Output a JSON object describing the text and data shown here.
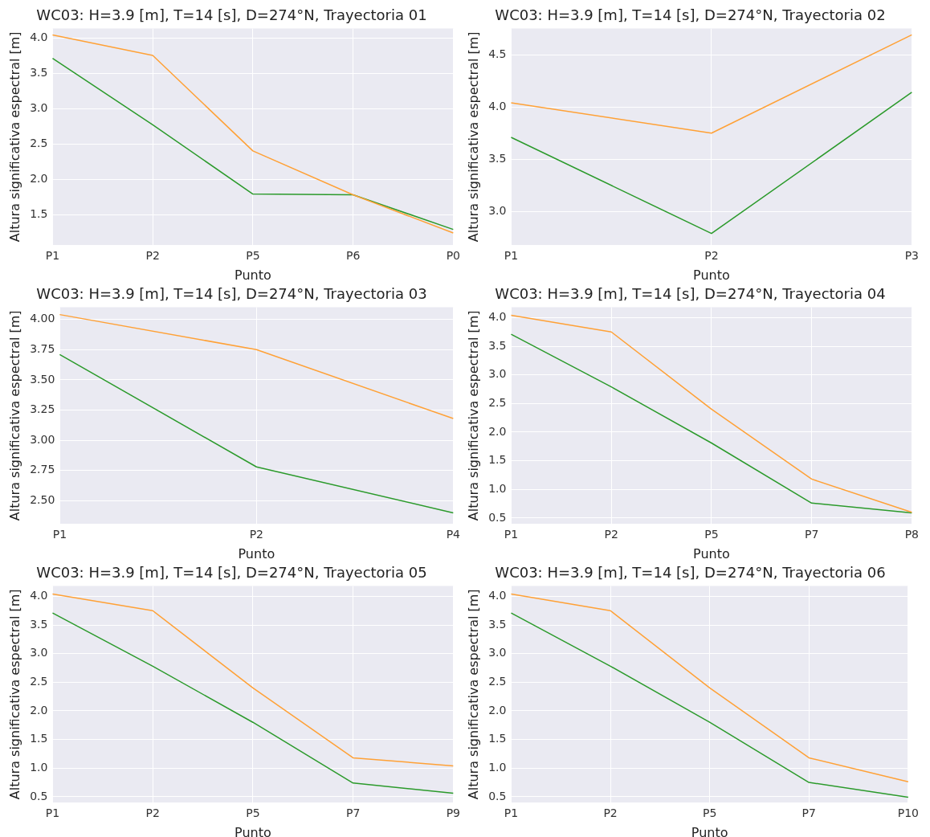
{
  "chart_data": [
    {
      "type": "line",
      "title": "WC03: H=3.9 [m], T=14 [s], D=274°N, Trayectoria 01",
      "xlabel": "Punto",
      "ylabel": "Altura significativa espectral [m]",
      "categories": [
        "P1",
        "P2",
        "P5",
        "P6",
        "P0"
      ],
      "ylim": [
        1.07,
        4.13
      ],
      "yticks": [
        {
          "value": 1.5,
          "label": "1.5"
        },
        {
          "value": 2,
          "label": "2.0"
        },
        {
          "value": 2.5,
          "label": "2.5"
        },
        {
          "value": 3,
          "label": "3.0"
        },
        {
          "value": 3.5,
          "label": "3.5"
        },
        {
          "value": 4,
          "label": "4.0"
        }
      ],
      "grid": true,
      "series": [
        {
          "color": "#ffa136",
          "values": [
            4.04,
            3.75,
            2.4,
            1.78,
            1.24
          ]
        },
        {
          "color": "#2b9a2b",
          "values": [
            3.71,
            2.77,
            1.79,
            1.78,
            1.29
          ]
        }
      ]
    },
    {
      "type": "line",
      "title": "WC03: H=3.9 [m], T=14 [s], D=274°N, Trayectoria 02",
      "xlabel": "Punto",
      "ylabel": "Altura significativa espectral [m]",
      "categories": [
        "P1",
        "P2",
        "P3"
      ],
      "ylim": [
        2.68,
        4.75
      ],
      "yticks": [
        {
          "value": 3,
          "label": "3.0"
        },
        {
          "value": 3.5,
          "label": "3.5"
        },
        {
          "value": 4,
          "label": "4.0"
        },
        {
          "value": 4.5,
          "label": "4.5"
        }
      ],
      "grid": true,
      "series": [
        {
          "color": "#ffa136",
          "values": [
            4.04,
            3.75,
            4.69
          ]
        },
        {
          "color": "#2b9a2b",
          "values": [
            3.71,
            2.79,
            4.14
          ]
        }
      ]
    },
    {
      "type": "line",
      "title": "WC03: H=3.9 [m], T=14 [s], D=274°N, Trayectoria 03",
      "xlabel": "Punto",
      "ylabel": "Altura significativa espectral [m]",
      "categories": [
        "P1",
        "P2",
        "P4"
      ],
      "ylim": [
        2.31,
        4.1
      ],
      "yticks": [
        {
          "value": 2.5,
          "label": "2.50"
        },
        {
          "value": 2.75,
          "label": "2.75"
        },
        {
          "value": 3,
          "label": "3.00"
        },
        {
          "value": 3.25,
          "label": "3.25"
        },
        {
          "value": 3.5,
          "label": "3.50"
        },
        {
          "value": 3.75,
          "label": "3.75"
        },
        {
          "value": 4,
          "label": "4.00"
        }
      ],
      "grid": true,
      "series": [
        {
          "color": "#ffa136",
          "values": [
            4.04,
            3.75,
            3.18
          ]
        },
        {
          "color": "#2b9a2b",
          "values": [
            3.71,
            2.78,
            2.4
          ]
        }
      ]
    },
    {
      "type": "line",
      "title": "WC03: H=3.9 [m], T=14 [s], D=274°N, Trayectoria 04",
      "xlabel": "Punto",
      "ylabel": "Altura significativa espectral [m]",
      "categories": [
        "P1",
        "P2",
        "P5",
        "P7",
        "P8"
      ],
      "ylim": [
        0.4,
        4.18
      ],
      "yticks": [
        0.5,
        {
          "value": 1,
          "label": "1.0"
        },
        1.5,
        {
          "value": 2,
          "label": "2.0"
        },
        2.5,
        {
          "value": 3,
          "label": "3.0"
        },
        3.5,
        {
          "value": 4,
          "label": "4.0"
        }
      ],
      "grid": true,
      "series": [
        {
          "color": "#ffa136",
          "values": [
            4.04,
            3.75,
            2.4,
            1.18,
            0.6
          ]
        },
        {
          "color": "#2b9a2b",
          "values": [
            3.71,
            2.79,
            1.81,
            0.76,
            0.59
          ]
        }
      ]
    },
    {
      "type": "line",
      "title": "WC03: H=3.9 [m], T=14 [s], D=274°N, Trayectoria 05",
      "xlabel": "Punto",
      "ylabel": "Altura significativa espectral [m]",
      "categories": [
        "P1",
        "P2",
        "P5",
        "P7",
        "P9"
      ],
      "ylim": [
        0.4,
        4.18
      ],
      "yticks": [
        0.5,
        {
          "value": 1,
          "label": "1.0"
        },
        1.5,
        {
          "value": 2,
          "label": "2.0"
        },
        2.5,
        {
          "value": 3,
          "label": "3.0"
        },
        3.5,
        {
          "value": 4,
          "label": "4.0"
        }
      ],
      "grid": true,
      "series": [
        {
          "color": "#ffa136",
          "values": [
            4.04,
            3.75,
            2.4,
            1.18,
            1.04
          ]
        },
        {
          "color": "#2b9a2b",
          "values": [
            3.71,
            2.78,
            1.8,
            0.74,
            0.56
          ]
        }
      ]
    },
    {
      "type": "line",
      "title": "WC03: H=3.9 [m], T=14 [s], D=274°N, Trayectoria 06",
      "xlabel": "Punto",
      "ylabel": "Altura significativa espectral [m]",
      "categories": [
        "P1",
        "P2",
        "P5",
        "P7",
        "P10"
      ],
      "ylim": [
        0.4,
        4.18
      ],
      "yticks": [
        0.5,
        {
          "value": 1,
          "label": "1.0"
        },
        1.5,
        {
          "value": 2,
          "label": "2.0"
        },
        2.5,
        {
          "value": 3,
          "label": "3.0"
        },
        3.5,
        {
          "value": 4,
          "label": "4.0"
        }
      ],
      "grid": true,
      "series": [
        {
          "color": "#ffa136",
          "values": [
            4.04,
            3.75,
            2.4,
            1.18,
            0.76
          ]
        },
        {
          "color": "#2b9a2b",
          "values": [
            3.71,
            2.78,
            1.8,
            0.75,
            0.49
          ]
        }
      ]
    }
  ]
}
